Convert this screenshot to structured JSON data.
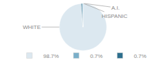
{
  "chart_data": {
    "type": "pie",
    "categories": [
      "WHITE",
      "A.I.",
      "HISPANIC"
    ],
    "values": [
      98.7,
      0.7,
      0.7
    ],
    "value_labels": [
      "98.7%",
      "0.7%",
      "0.7%"
    ],
    "colors": [
      "#dce8f0",
      "#7aafc9",
      "#2d6f8e"
    ],
    "legend": "bottom"
  }
}
